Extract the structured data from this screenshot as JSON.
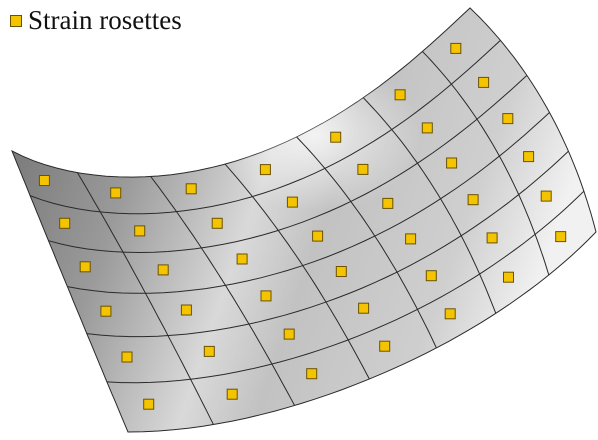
{
  "legend": {
    "label": "Strain rosettes",
    "marker_color": "#f5c400",
    "marker_stroke": "#6b5200"
  },
  "surface": {
    "light_color": "#f1f1f1",
    "mid_color": "#b8b8b8",
    "dark_color": "#6f6f6f",
    "line_color": "#2a2a2a",
    "grid_rows": 6,
    "grid_cols": 7
  }
}
